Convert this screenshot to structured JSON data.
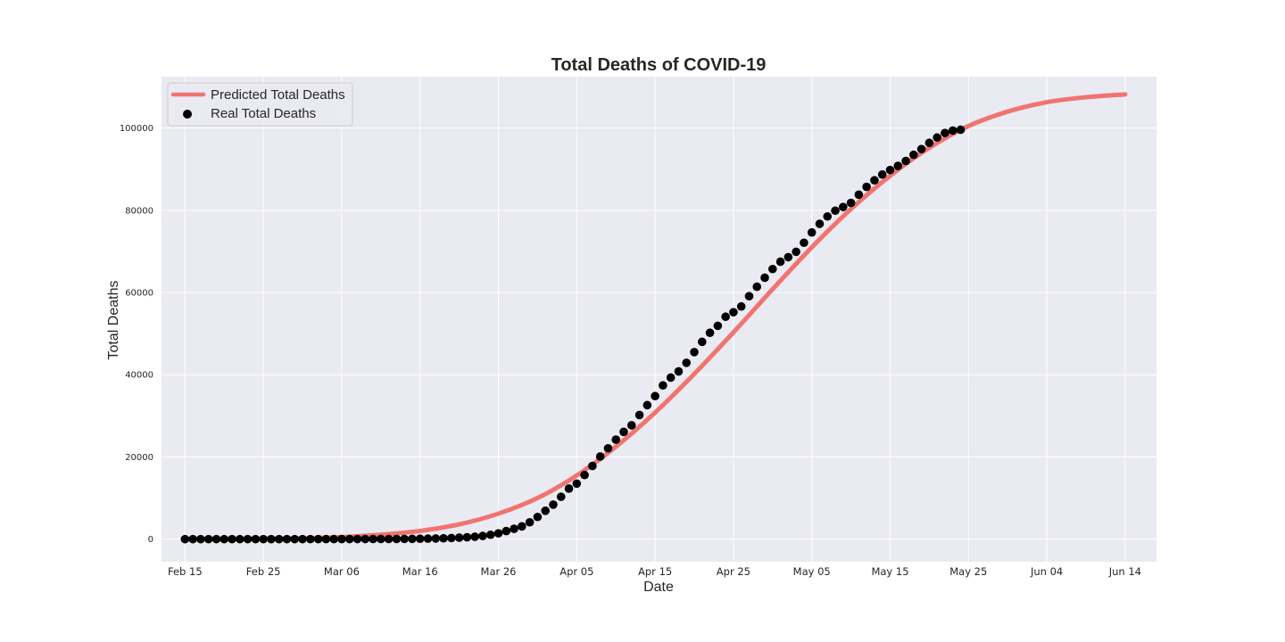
{
  "chart_data": {
    "type": "line",
    "title": "Total Deaths of COVID-19",
    "xlabel": "Date",
    "ylabel": "Total Deaths",
    "x_axis_type": "date",
    "xlim": [
      "2020-02-12",
      "2020-06-18"
    ],
    "ylim": [
      -5500,
      112500
    ],
    "x_ticks": [
      "2020-02-15",
      "2020-02-25",
      "2020-03-06",
      "2020-03-16",
      "2020-03-26",
      "2020-04-05",
      "2020-04-15",
      "2020-04-25",
      "2020-05-05",
      "2020-05-15",
      "2020-05-25",
      "2020-06-04",
      "2020-06-14"
    ],
    "x_tick_labels": [
      "Feb 15",
      "Feb 25",
      "Mar 06",
      "Mar 16",
      "Mar 26",
      "Apr 05",
      "Apr 15",
      "Apr 25",
      "May 05",
      "May 15",
      "May 25",
      "Jun 04",
      "Jun 14"
    ],
    "y_ticks": [
      0,
      20000,
      40000,
      60000,
      80000,
      100000
    ],
    "y_tick_labels": [
      "0",
      "20000",
      "40000",
      "60000",
      "80000",
      "100000"
    ],
    "grid": true,
    "legend_position": "top-left",
    "background_color": "#eaeaf2",
    "series": [
      {
        "name": "Predicted Total Deaths",
        "kind": "line",
        "color": "#f07470",
        "x": [
          "2020-02-15",
          "2020-02-20",
          "2020-02-25",
          "2020-03-01",
          "2020-03-06",
          "2020-03-11",
          "2020-03-16",
          "2020-03-21",
          "2020-03-26",
          "2020-03-31",
          "2020-04-05",
          "2020-04-10",
          "2020-04-15",
          "2020-04-20",
          "2020-04-25",
          "2020-04-30",
          "2020-05-05",
          "2020-05-10",
          "2020-05-15",
          "2020-05-20",
          "2020-05-25",
          "2020-05-30",
          "2020-06-04",
          "2020-06-09",
          "2020-06-14"
        ],
        "y": [
          0,
          0,
          100,
          200,
          500,
          1100,
          2000,
          3600,
          6200,
          10000,
          15500,
          22500,
          30800,
          40200,
          50300,
          60800,
          71000,
          80300,
          88400,
          95200,
          100500,
          104000,
          106300,
          107500,
          108200
        ]
      },
      {
        "name": "Real Total Deaths",
        "kind": "scatter",
        "color": "#000000",
        "x": [
          "2020-02-15",
          "2020-02-16",
          "2020-02-17",
          "2020-02-18",
          "2020-02-19",
          "2020-02-20",
          "2020-02-21",
          "2020-02-22",
          "2020-02-23",
          "2020-02-24",
          "2020-02-25",
          "2020-02-26",
          "2020-02-27",
          "2020-02-28",
          "2020-02-29",
          "2020-03-01",
          "2020-03-02",
          "2020-03-03",
          "2020-03-04",
          "2020-03-05",
          "2020-03-06",
          "2020-03-07",
          "2020-03-08",
          "2020-03-09",
          "2020-03-10",
          "2020-03-11",
          "2020-03-12",
          "2020-03-13",
          "2020-03-14",
          "2020-03-15",
          "2020-03-16",
          "2020-03-17",
          "2020-03-18",
          "2020-03-19",
          "2020-03-20",
          "2020-03-21",
          "2020-03-22",
          "2020-03-23",
          "2020-03-24",
          "2020-03-25",
          "2020-03-26",
          "2020-03-27",
          "2020-03-28",
          "2020-03-29",
          "2020-03-30",
          "2020-03-31",
          "2020-04-01",
          "2020-04-02",
          "2020-04-03",
          "2020-04-04",
          "2020-04-05",
          "2020-04-06",
          "2020-04-07",
          "2020-04-08",
          "2020-04-09",
          "2020-04-10",
          "2020-04-11",
          "2020-04-12",
          "2020-04-13",
          "2020-04-14",
          "2020-04-15",
          "2020-04-16",
          "2020-04-17",
          "2020-04-18",
          "2020-04-19",
          "2020-04-20",
          "2020-04-21",
          "2020-04-22",
          "2020-04-23",
          "2020-04-24",
          "2020-04-25",
          "2020-04-26",
          "2020-04-27",
          "2020-04-28",
          "2020-04-29",
          "2020-04-30",
          "2020-05-01",
          "2020-05-02",
          "2020-05-03",
          "2020-05-04",
          "2020-05-05",
          "2020-05-06",
          "2020-05-07",
          "2020-05-08",
          "2020-05-09",
          "2020-05-10",
          "2020-05-11",
          "2020-05-12",
          "2020-05-13",
          "2020-05-14",
          "2020-05-15",
          "2020-05-16",
          "2020-05-17",
          "2020-05-18",
          "2020-05-19",
          "2020-05-20",
          "2020-05-21",
          "2020-05-22",
          "2020-05-23",
          "2020-05-24"
        ],
        "y": [
          0,
          0,
          0,
          0,
          0,
          0,
          0,
          0,
          0,
          0,
          0,
          0,
          0,
          0,
          1,
          1,
          6,
          9,
          11,
          12,
          15,
          19,
          22,
          26,
          31,
          38,
          41,
          48,
          58,
          73,
          96,
          117,
          162,
          212,
          277,
          363,
          453,
          591,
          778,
          1060,
          1416,
          1962,
          2510,
          3109,
          4100,
          5400,
          6900,
          8400,
          10300,
          12300,
          13500,
          15600,
          17800,
          20100,
          22100,
          24200,
          26100,
          27700,
          30200,
          32600,
          34800,
          37400,
          39300,
          40800,
          42900,
          45500,
          48000,
          50200,
          51900,
          54100,
          55200,
          56600,
          59100,
          61400,
          63600,
          65700,
          67500,
          68600,
          69900,
          72100,
          74600,
          76700,
          78500,
          79900,
          80800,
          81800,
          83800,
          85700,
          87300,
          88700,
          89800,
          90800,
          92000,
          93500,
          94900,
          96400,
          97700,
          98800,
          99400,
          99600
        ]
      }
    ]
  }
}
